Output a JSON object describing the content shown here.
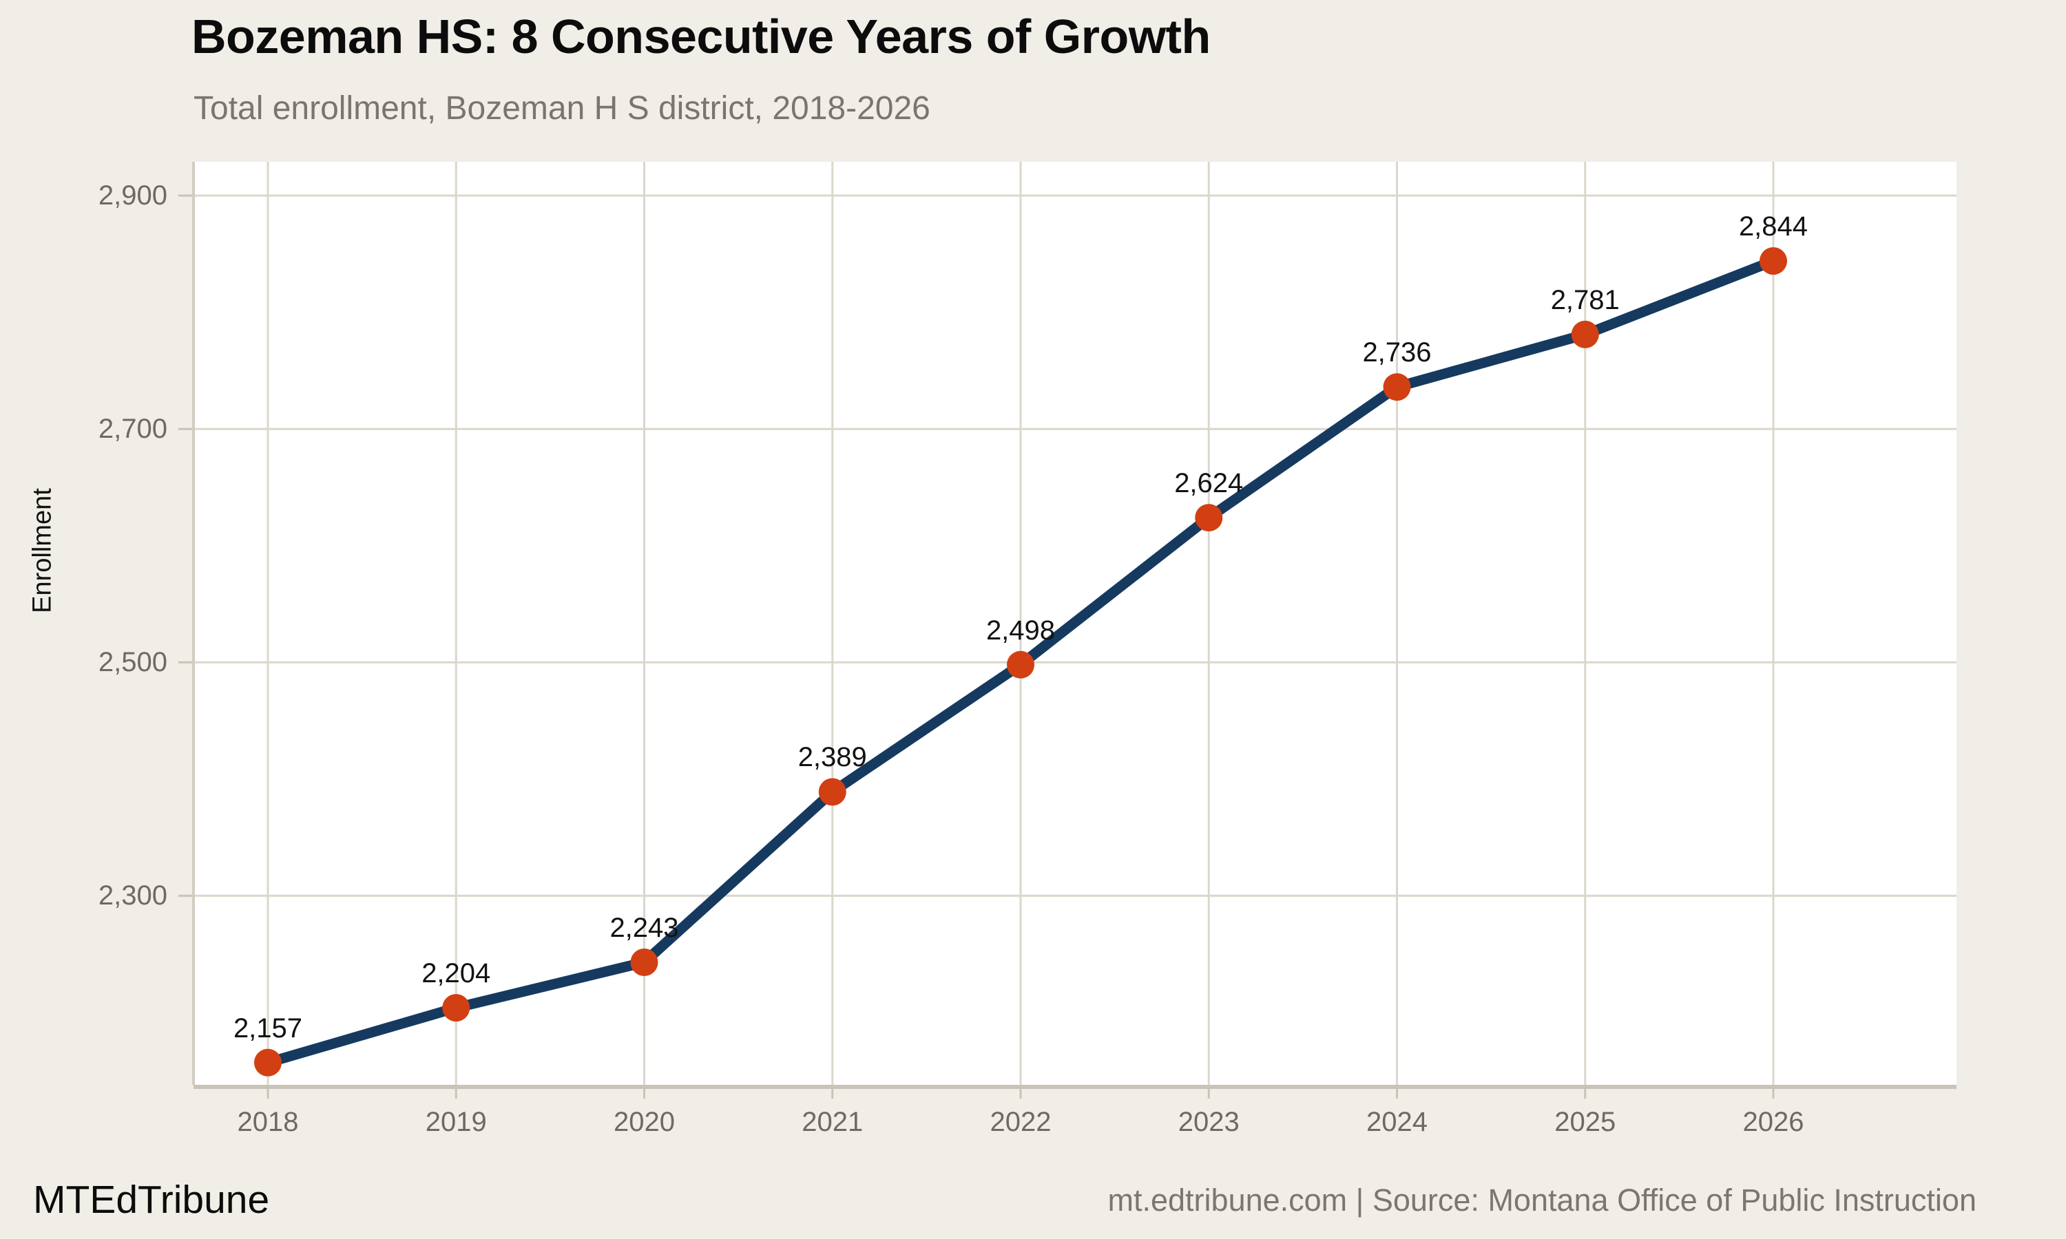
{
  "header": {
    "title": "Bozeman HS: 8 Consecutive Years of Growth",
    "subtitle": "Total enrollment, Bozeman H S district, 2018-2026"
  },
  "y_axis": {
    "label": "Enrollment",
    "ticks": [
      {
        "value": 2300,
        "label": "2,300"
      },
      {
        "value": 2500,
        "label": "2,500"
      },
      {
        "value": 2700,
        "label": "2,700"
      },
      {
        "value": 2900,
        "label": "2,900"
      }
    ]
  },
  "x_axis": {
    "ticks": [
      {
        "value": 2018,
        "label": "2018"
      },
      {
        "value": 2019,
        "label": "2019"
      },
      {
        "value": 2020,
        "label": "2020"
      },
      {
        "value": 2021,
        "label": "2021"
      },
      {
        "value": 2022,
        "label": "2022"
      },
      {
        "value": 2023,
        "label": "2023"
      },
      {
        "value": 2024,
        "label": "2024"
      },
      {
        "value": 2025,
        "label": "2025"
      },
      {
        "value": 2026,
        "label": "2026"
      }
    ]
  },
  "footer": {
    "brand": "MTEdTribune",
    "source": "mt.edtribune.com | Source: Montana Office of Public Instruction"
  },
  "colors": {
    "background": "#f1eee7",
    "plot_background": "#ffffff",
    "gridline": "#dbd7cd",
    "axis": "#c9c3b8",
    "plot_border": "#d2cdc2",
    "line": "#163a5f",
    "point": "#d23f12",
    "title_text": "#0c0c0c",
    "subtitle_text": "#7a756e",
    "tick_text": "#6e6a63",
    "data_label_text": "#121212",
    "footer_brand_text": "#0c0c0c",
    "footer_source_text": "#7b766f"
  },
  "chart_data": {
    "type": "line",
    "title": "Bozeman HS: 8 Consecutive Years of Growth",
    "subtitle": "Total enrollment, Bozeman H S district, 2018-2026",
    "x": [
      2018,
      2019,
      2020,
      2021,
      2022,
      2023,
      2024,
      2025,
      2026
    ],
    "series": [
      {
        "name": "Total enrollment",
        "values": [
          2157,
          2204,
          2243,
          2389,
          2498,
          2624,
          2736,
          2781,
          2844
        ],
        "point_labels": [
          "2,157",
          "2,204",
          "2,243",
          "2,389",
          "2,498",
          "2,624",
          "2,736",
          "2,781",
          "2,844"
        ]
      }
    ],
    "xlabel": "",
    "ylabel": "Enrollment",
    "ylim": [
      2138,
      2929
    ],
    "y_ticks": [
      2300,
      2500,
      2700,
      2900
    ],
    "grid": true,
    "legend": false,
    "marker": "circle"
  }
}
